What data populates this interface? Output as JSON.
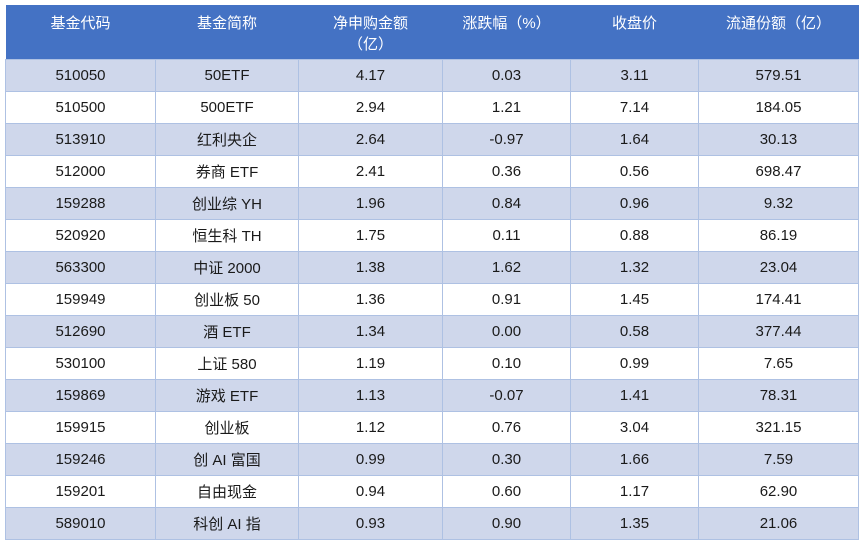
{
  "colors": {
    "header_bg": "#4472c4",
    "header_text": "#ffffff",
    "band_bg": "#cfd7eb",
    "row_bg": "#ffffff",
    "border": "#aec1e3",
    "text": "#1a1a1a",
    "page_bg": "#ffffff"
  },
  "chart_data": {
    "type": "table",
    "title": "",
    "columns": [
      "基金代码",
      "基金简称",
      "净申购金额（亿）",
      "涨跌幅（%）",
      "收盘价",
      "流通份额（亿）"
    ],
    "rows": [
      [
        "510050",
        "50ETF",
        "4.17",
        "0.03",
        "3.11",
        "579.51"
      ],
      [
        "510500",
        "500ETF",
        "2.94",
        "1.21",
        "7.14",
        "184.05"
      ],
      [
        "513910",
        "红利央企",
        "2.64",
        "-0.97",
        "1.64",
        "30.13"
      ],
      [
        "512000",
        "券商 ETF",
        "2.41",
        "0.36",
        "0.56",
        "698.47"
      ],
      [
        "159288",
        "创业综 YH",
        "1.96",
        "0.84",
        "0.96",
        "9.32"
      ],
      [
        "520920",
        "恒生科 TH",
        "1.75",
        "0.11",
        "0.88",
        "86.19"
      ],
      [
        "563300",
        "中证 2000",
        "1.38",
        "1.62",
        "1.32",
        "23.04"
      ],
      [
        "159949",
        "创业板 50",
        "1.36",
        "0.91",
        "1.45",
        "174.41"
      ],
      [
        "512690",
        "酒 ETF",
        "1.34",
        "0.00",
        "0.58",
        "377.44"
      ],
      [
        "530100",
        "上证 580",
        "1.19",
        "0.10",
        "0.99",
        "7.65"
      ],
      [
        "159869",
        "游戏 ETF",
        "1.13",
        "-0.07",
        "1.41",
        "78.31"
      ],
      [
        "159915",
        "创业板",
        "1.12",
        "0.76",
        "3.04",
        "321.15"
      ],
      [
        "159246",
        "创 AI 富国",
        "0.99",
        "0.30",
        "1.66",
        "7.59"
      ],
      [
        "159201",
        "自由现金",
        "0.94",
        "0.60",
        "1.17",
        "62.90"
      ],
      [
        "589010",
        "科创 AI 指",
        "0.93",
        "0.90",
        "1.35",
        "21.06"
      ]
    ],
    "layout": {
      "banded_rows": true,
      "first_data_row_banded": true,
      "grid": true,
      "text_align": "center"
    }
  }
}
